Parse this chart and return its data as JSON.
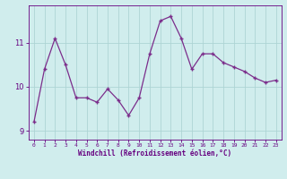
{
  "x": [
    0,
    1,
    2,
    3,
    4,
    5,
    6,
    7,
    8,
    9,
    10,
    11,
    12,
    13,
    14,
    15,
    16,
    17,
    18,
    19,
    20,
    21,
    22,
    23
  ],
  "y": [
    9.2,
    10.4,
    11.1,
    10.5,
    9.75,
    9.75,
    9.65,
    9.95,
    9.7,
    9.35,
    9.75,
    10.75,
    11.5,
    11.6,
    11.1,
    10.4,
    10.75,
    10.75,
    10.55,
    10.45,
    10.35,
    10.2,
    10.1,
    10.15
  ],
  "line_color": "#7b2d8b",
  "marker": "+",
  "bg_color": "#d0eded",
  "grid_color": "#aed4d4",
  "xlabel": "Windchill (Refroidissement éolien,°C)",
  "xlabel_color": "#660080",
  "tick_color": "#660080",
  "axis_color": "#660080",
  "ylim": [
    8.8,
    11.85
  ],
  "yticks": [
    9,
    10,
    11
  ],
  "xlim": [
    -0.5,
    23.5
  ],
  "xticks": [
    0,
    1,
    2,
    3,
    4,
    5,
    6,
    7,
    8,
    9,
    10,
    11,
    12,
    13,
    14,
    15,
    16,
    17,
    18,
    19,
    20,
    21,
    22,
    23
  ],
  "xtick_labels": [
    "0",
    "1",
    "2",
    "3",
    "4",
    "5",
    "6",
    "7",
    "8",
    "9",
    "10",
    "11",
    "12",
    "13",
    "14",
    "15",
    "16",
    "17",
    "18",
    "19",
    "20",
    "21",
    "22",
    "23"
  ]
}
